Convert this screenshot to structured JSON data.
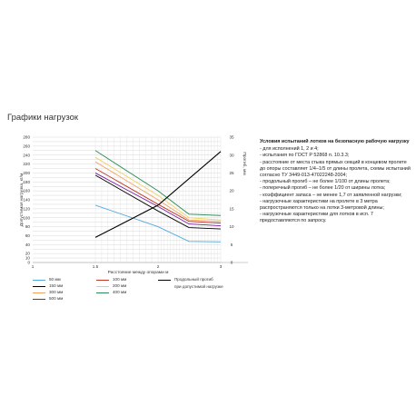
{
  "page": {
    "title": "Графики нагрузок"
  },
  "chart_data": {
    "type": "line",
    "xlabel": "Расстояние между опорами м",
    "ylabel_left": "Допустимая нагрузка, кг/м",
    "ylabel_right": "Прогиб, мм",
    "x_ticks": [
      "1",
      "1.5",
      "2",
      "3"
    ],
    "y_left_ticks": [
      0,
      10,
      20,
      40,
      60,
      80,
      100,
      120,
      140,
      160,
      180,
      200,
      220,
      240,
      260,
      280
    ],
    "y_right_ticks": [
      0,
      5,
      10,
      15,
      20,
      25,
      30,
      35
    ],
    "x_positions": [
      1.5,
      2,
      2.5,
      3
    ],
    "series": [
      {
        "name": "50 мм",
        "color": "#4ea8de",
        "values": [
          128,
          80,
          47,
          46
        ]
      },
      {
        "name": "100 мм",
        "color": "#c0392b",
        "values": [
          210,
          130,
          92,
          88
        ]
      },
      {
        "name": "150 мм",
        "color": "#000000",
        "values": [
          195,
          115,
          78,
          75
        ]
      },
      {
        "name": "200 мм",
        "color": "#f0d060",
        "values": [
          235,
          150,
          100,
          95
        ]
      },
      {
        "name": "300 мм",
        "color": "#f4a261",
        "values": [
          225,
          140,
          95,
          92
        ]
      },
      {
        "name": "400 мм",
        "color": "#2e8b57",
        "values": [
          250,
          160,
          108,
          105
        ]
      },
      {
        "name": "500 мм",
        "color": "#7b1fa2",
        "values": [
          200,
          125,
          86,
          82
        ]
      }
    ],
    "deflection": {
      "name": "Продольный прогиб при допустимой нагрузке",
      "color": "#000000",
      "x": [
        1.5,
        2,
        3
      ],
      "values": [
        7,
        16,
        31
      ]
    }
  },
  "legend": {
    "items": [
      {
        "label": "50 мм",
        "color": "#4ea8de"
      },
      {
        "label": "150 мм",
        "color": "#000000"
      },
      {
        "label": "300 мм",
        "color": "#f4a261"
      },
      {
        "label": "500 мм",
        "color": "#7b1fa2"
      },
      {
        "label": "100 мм",
        "color": "#c0392b"
      },
      {
        "label": "200 мм",
        "color": "#f0d060"
      },
      {
        "label": "400 мм",
        "color": "#2e8b57"
      }
    ],
    "deflection_line1": "Продольный прогиб",
    "deflection_line2": "при допустимой нагрузке"
  },
  "conditions": {
    "title": "Условия испытаний лотков на безопасную рабочую нагрузку",
    "items": [
      "- для исполнений 1, 2 и 4;",
      "- испытания по ГОСТ Р 52868 п. 10.3.3;",
      "- расстояние от места стыка прямых секций в концевом пролете до опоры составляет 1/4–1/5 от длины пролета, схемы испытаний согласно ТУ 3449-013-47022248-2004;",
      "- продольный прогиб – не более 1/100 от длины пролета;",
      "- поперечный прогиб – не более 1/20 от ширины лотка;",
      "- коэффициент запаса – не менее 1,7 от заявленной нагрузки;",
      "- нагрузочные характеристики на пролете в 3 метра распространяются только на лотки 3-метровой длины;",
      "- нагрузочные характеристики для лотков в исп. 7 предоставляются по запросу."
    ]
  }
}
